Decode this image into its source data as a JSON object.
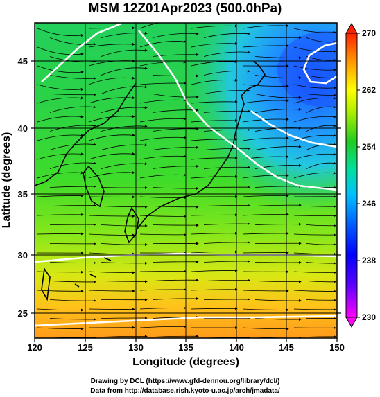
{
  "title": "MSM 12Z01Apr2023 (500.0hPa)",
  "x_axis": {
    "label": "Longitude (degrees)",
    "ticks": [
      "120",
      "125",
      "130",
      "135",
      "140",
      "145",
      "150"
    ]
  },
  "y_axis": {
    "label": "Latitude  (degrees)",
    "ticks": [
      "25",
      "30",
      "35",
      "40",
      "45"
    ]
  },
  "colorbar": {
    "ticks": [
      "270",
      "262",
      "254",
      "246",
      "238",
      "230"
    ]
  },
  "credits": {
    "line1": "Drawing by DCL (https://www.gfd-dennou.org/library/dcl/)",
    "line2": "Data from http://database.rish.kyoto-u.ac.jp/arch/jmadata/"
  },
  "chart_data": {
    "type": "heatmap",
    "variable": "temperature (K) with wind streamlines",
    "level_hPa": 500.0,
    "lon_range": [
      120,
      150
    ],
    "lat_range": [
      22.5,
      48
    ],
    "color_range": [
      230,
      270
    ],
    "colormap": [
      "#ff00ff",
      "#0000ff",
      "#00bfff",
      "#00e0a0",
      "#22cc22",
      "#ffff00",
      "#ff8800",
      "#ff2200"
    ],
    "contour_lines_K": [
      246,
      254,
      262
    ],
    "grid": true
  }
}
